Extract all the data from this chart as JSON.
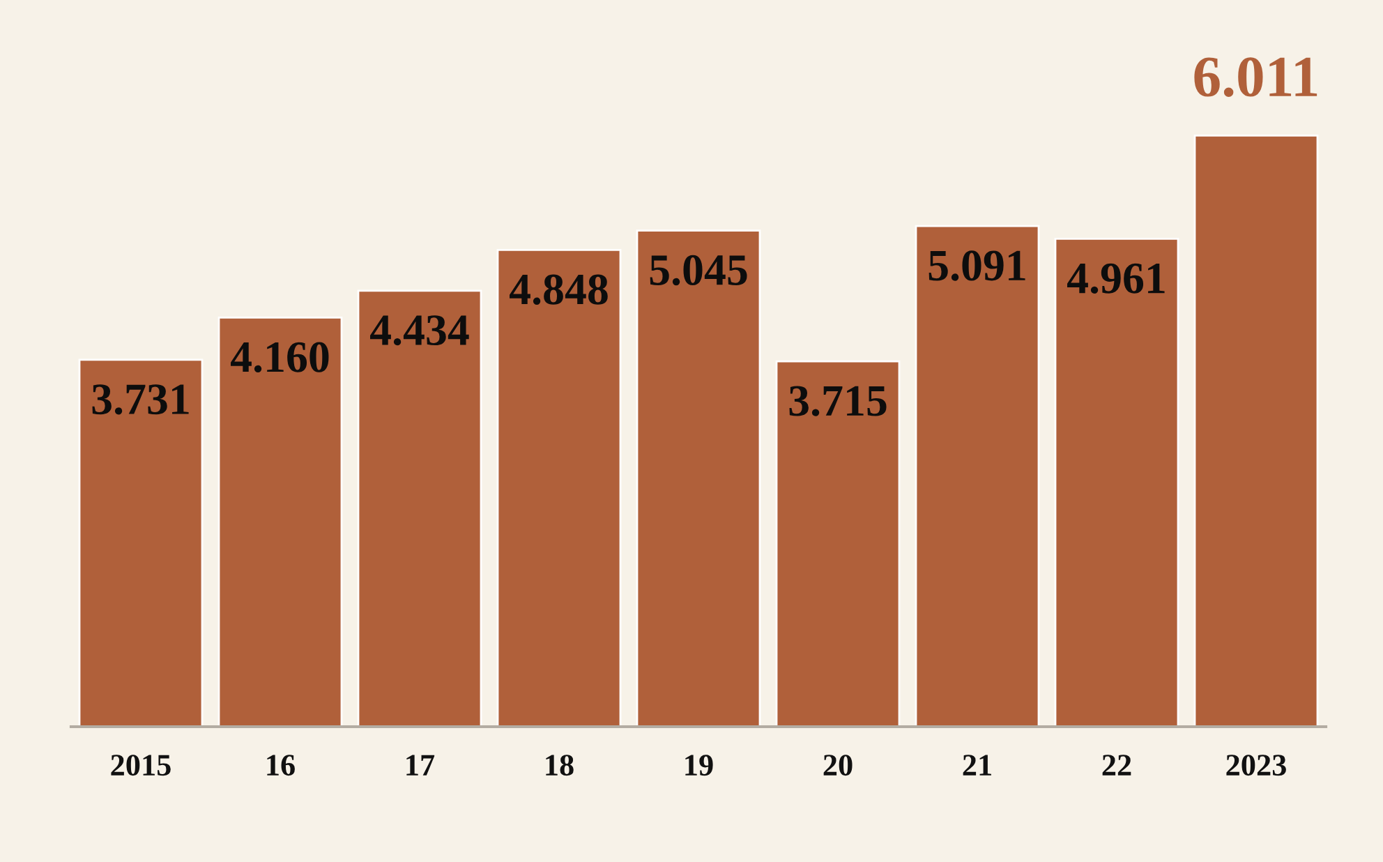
{
  "chart_data": {
    "type": "bar",
    "categories": [
      "2015",
      "16",
      "17",
      "18",
      "19",
      "20",
      "21",
      "22",
      "2023"
    ],
    "values": [
      3.731,
      4.16,
      4.434,
      4.848,
      5.045,
      3.715,
      5.091,
      4.961,
      6.011
    ],
    "color": "#b0603a",
    "value_labels": [
      "3.731",
      "4.160",
      "4.434",
      "4.848",
      "5.045",
      "3.715",
      "5.091",
      "4.961",
      null
    ],
    "annotations": [
      {
        "text": "6.011",
        "x": "2023",
        "y": 6.011
      }
    ]
  }
}
